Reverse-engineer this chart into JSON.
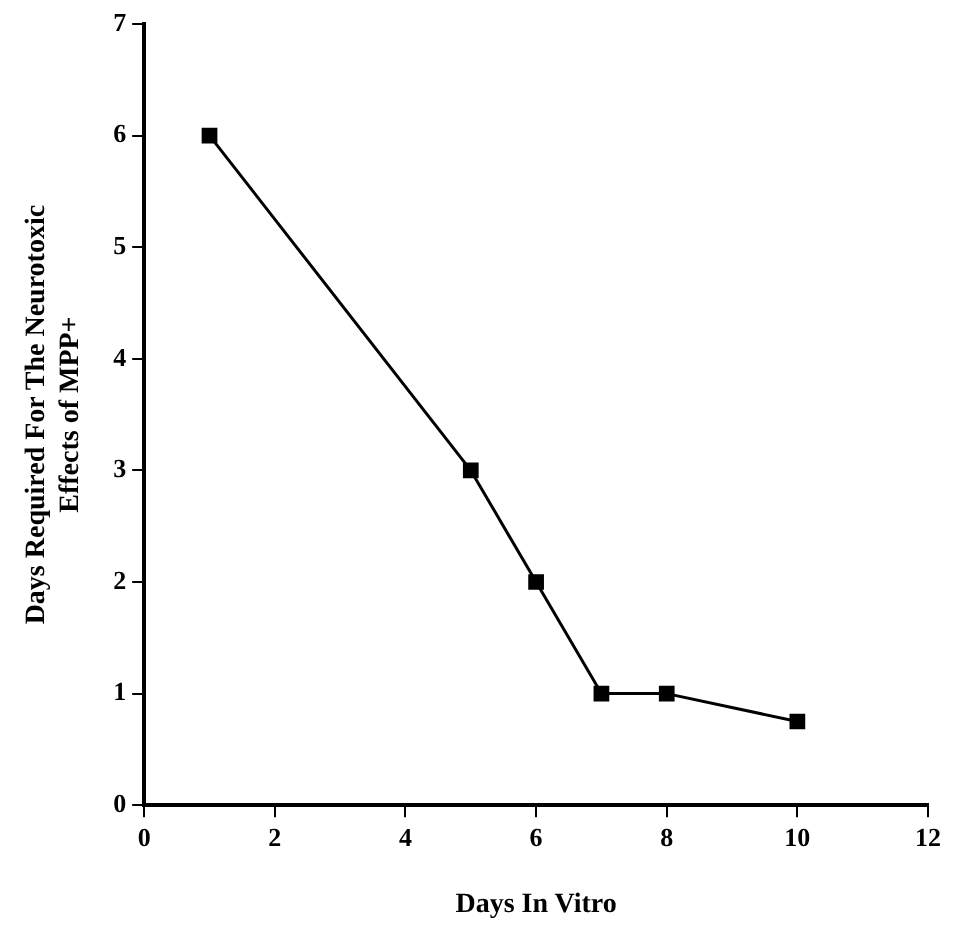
{
  "chart_data": {
    "type": "line",
    "xlabel": "Days In Vitro",
    "ylabel": "Days Required For The Neurotoxic\nEffects of MPP+",
    "x": [
      1,
      5,
      6,
      7,
      8,
      10
    ],
    "series": [
      {
        "color": "#000000",
        "values": [
          6,
          3,
          2,
          1,
          1,
          0.75
        ]
      }
    ],
    "xlim": [
      0,
      12
    ],
    "xticks": [
      0,
      2,
      4,
      6,
      8,
      10,
      12
    ],
    "ylim": [
      0,
      7
    ],
    "yticks": [
      0,
      1,
      2,
      3,
      4,
      5,
      6,
      7
    ],
    "grid": false,
    "legend": false,
    "marker": "square",
    "line_style": "solid"
  }
}
